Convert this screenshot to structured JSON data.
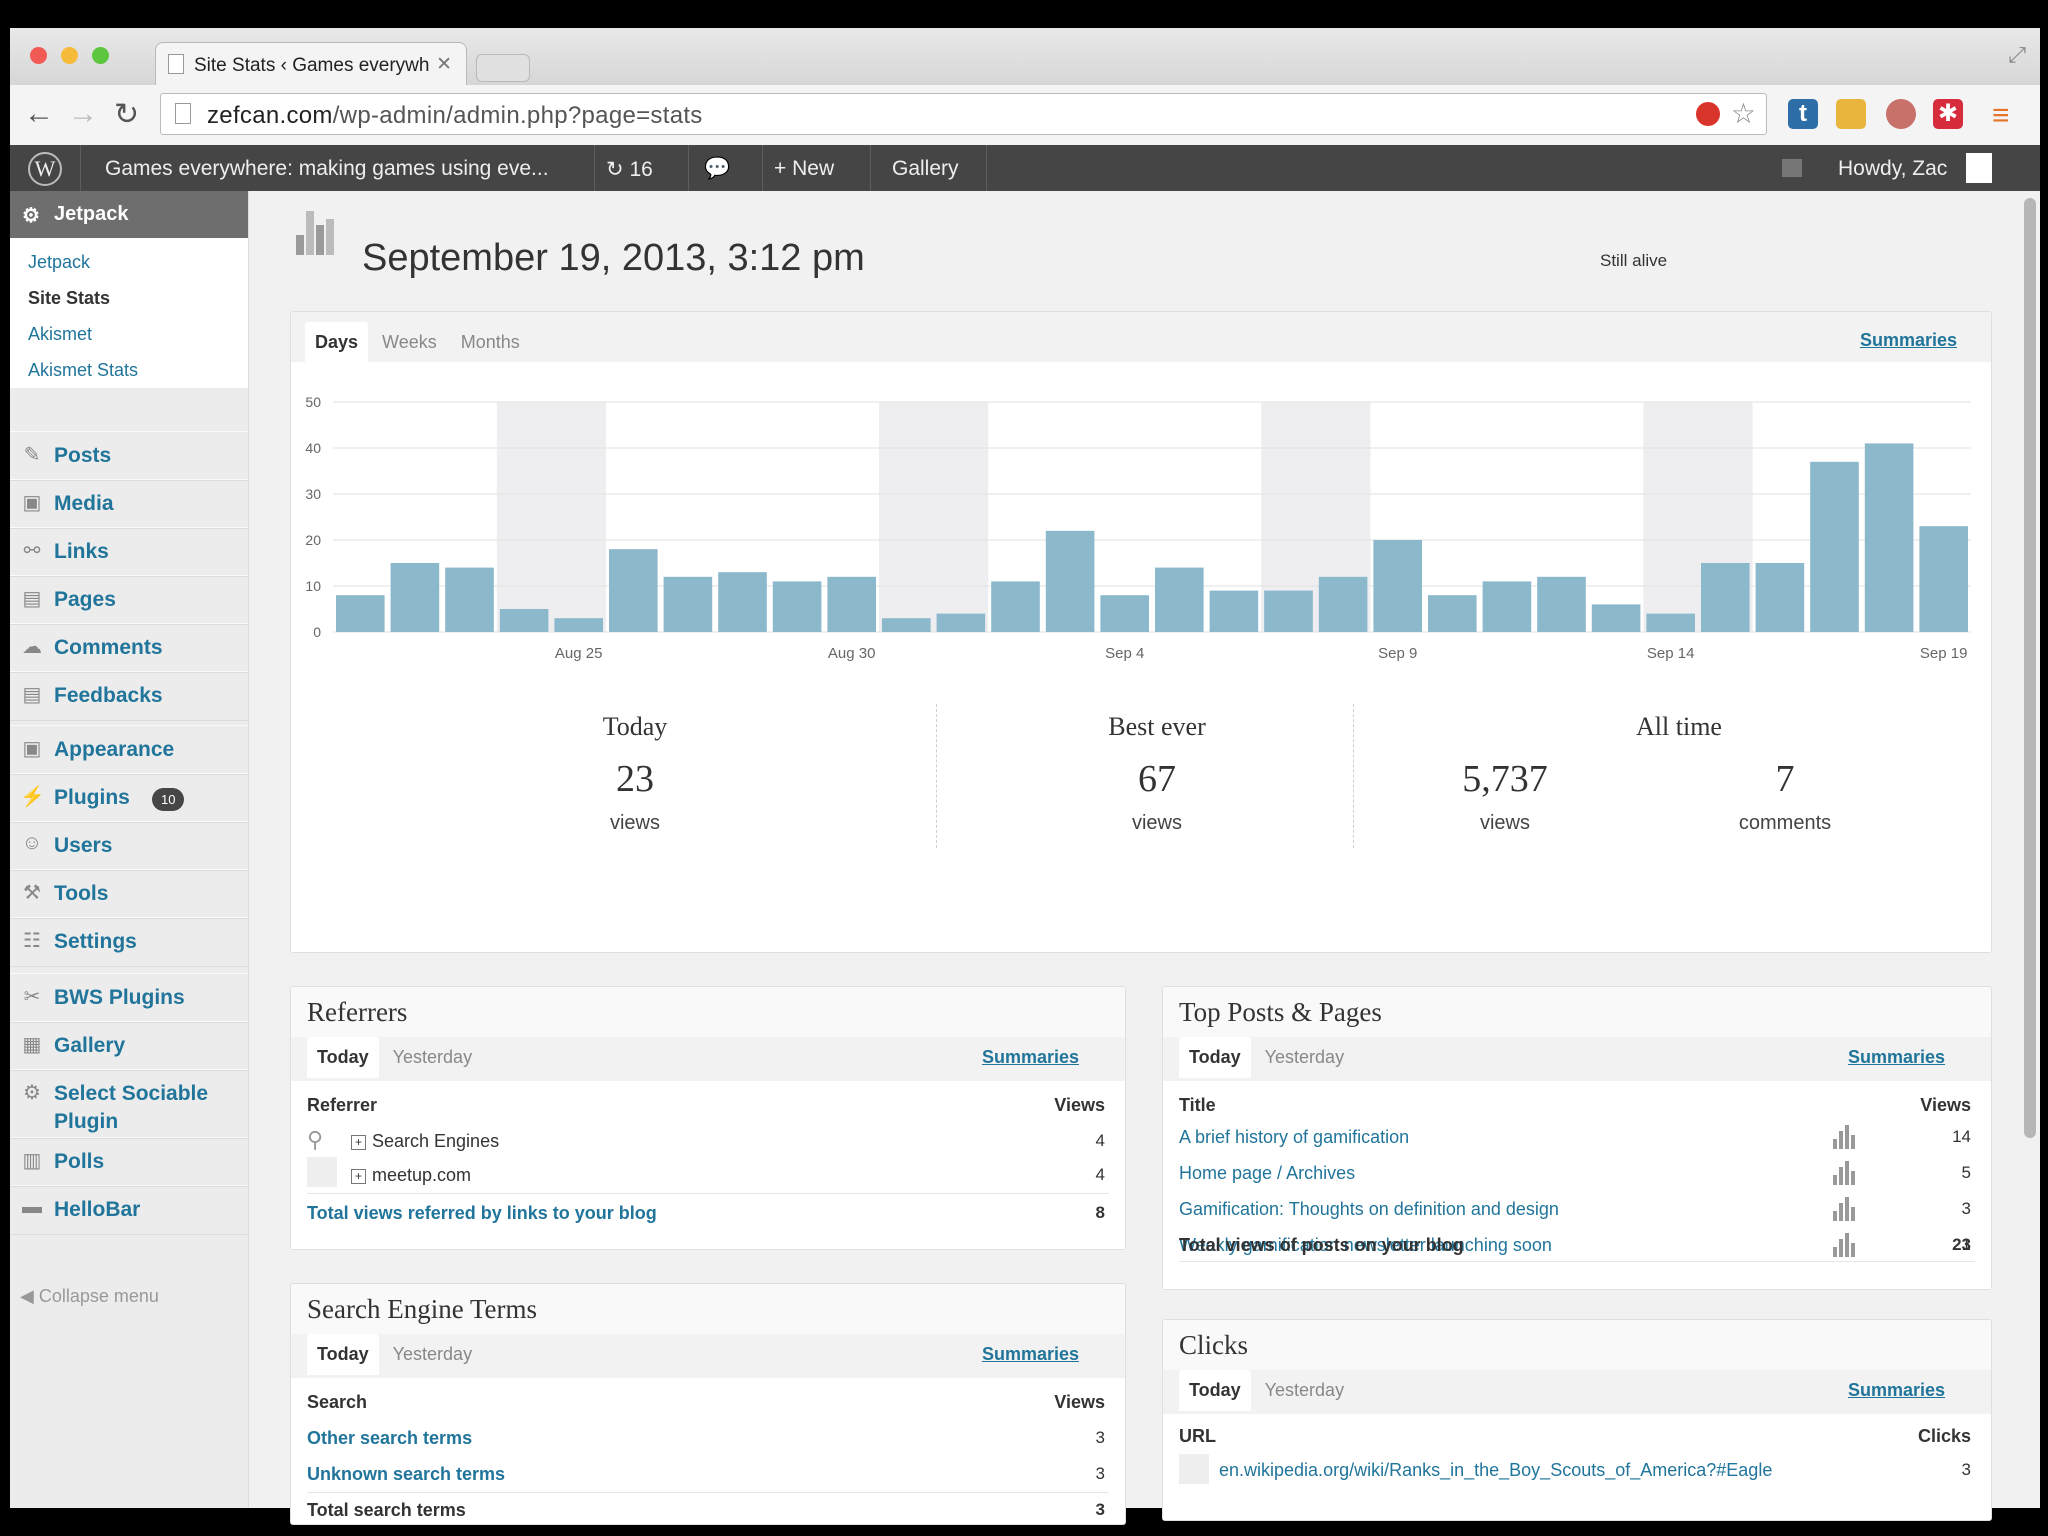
{
  "browser": {
    "tab_title": "Site Stats ‹ Games everywh",
    "url_domain": "zefcan.com",
    "url_path": "/wp-admin/admin.php?page=stats"
  },
  "adminbar": {
    "site_name": "Games everywhere: making games using eve...",
    "updates_count": "16",
    "new_label": "New",
    "gallery_label": "Gallery",
    "greeting": "Howdy, Zac"
  },
  "sidebar": {
    "current": "Jetpack",
    "submenu": [
      "Jetpack",
      "Site Stats",
      "Akismet",
      "Akismet Stats"
    ],
    "items": [
      {
        "label": "Posts",
        "icon": "pushpin-icon"
      },
      {
        "label": "Media",
        "icon": "media-icon"
      },
      {
        "label": "Links",
        "icon": "link-icon"
      },
      {
        "label": "Pages",
        "icon": "pages-icon"
      },
      {
        "label": "Comments",
        "icon": "comment-icon"
      },
      {
        "label": "Feedbacks",
        "icon": "feedback-icon"
      },
      {
        "label": "Appearance",
        "icon": "appearance-icon"
      },
      {
        "label": "Plugins",
        "icon": "plugin-icon",
        "badge": "10"
      },
      {
        "label": "Users",
        "icon": "users-icon"
      },
      {
        "label": "Tools",
        "icon": "tools-icon"
      },
      {
        "label": "Settings",
        "icon": "settings-icon"
      },
      {
        "label": "BWS Plugins",
        "icon": "bws-icon"
      },
      {
        "label": "Gallery",
        "icon": "gallery-icon"
      },
      {
        "label": "Select Sociable",
        "label2": "Plugin",
        "icon": "gear-icon"
      },
      {
        "label": "Polls",
        "icon": "polls-icon"
      },
      {
        "label": "HelloBar",
        "icon": "hellobar-icon"
      }
    ],
    "collapse": "Collapse menu"
  },
  "page": {
    "title": "September 19, 2013, 3:12 pm",
    "status": "Still alive"
  },
  "main_chart": {
    "tabs": [
      "Days",
      "Weeks",
      "Months"
    ],
    "summaries": "Summaries"
  },
  "chart_data": {
    "type": "bar",
    "categories": [
      "Aug 21",
      "Aug 22",
      "Aug 23",
      "Aug 24",
      "Aug 25",
      "Aug 26",
      "Aug 27",
      "Aug 28",
      "Aug 29",
      "Aug 30",
      "Aug 31",
      "Sep 1",
      "Sep 2",
      "Sep 3",
      "Sep 4",
      "Sep 5",
      "Sep 6",
      "Sep 7",
      "Sep 8",
      "Sep 9",
      "Sep 10",
      "Sep 11",
      "Sep 12",
      "Sep 13",
      "Sep 14",
      "Sep 15",
      "Sep 16",
      "Sep 17",
      "Sep 18",
      "Sep 19"
    ],
    "values": [
      8,
      15,
      14,
      5,
      3,
      18,
      12,
      13,
      11,
      12,
      3,
      4,
      11,
      22,
      8,
      14,
      9,
      9,
      12,
      20,
      8,
      11,
      12,
      6,
      4,
      15,
      15,
      37,
      41,
      23
    ],
    "xtick_labels": [
      "Aug 25",
      "Aug 30",
      "Sep 4",
      "Sep 9",
      "Sep 14",
      "Sep 19"
    ],
    "xtick_index": [
      4,
      9,
      14,
      19,
      24,
      29
    ],
    "yticks": [
      0,
      10,
      20,
      30,
      40,
      50
    ],
    "ylim": [
      0,
      50
    ],
    "weekend_bands": [
      [
        3,
        4
      ],
      [
        10,
        11
      ],
      [
        17,
        18
      ],
      [
        24,
        25
      ]
    ],
    "bar_color": "#8cb8cc",
    "band_color": "#eeeef0"
  },
  "summary": {
    "today": {
      "label": "Today",
      "value": "23",
      "unit": "views"
    },
    "best": {
      "label": "Best ever",
      "value": "67",
      "unit": "views"
    },
    "alltime": {
      "label": "All time",
      "views": "5,737",
      "views_unit": "views",
      "comments": "7",
      "comments_unit": "comments"
    }
  },
  "referrers": {
    "title": "Referrers",
    "tabs": [
      "Today",
      "Yesterday"
    ],
    "summaries": "Summaries",
    "col1": "Referrer",
    "col2": "Views",
    "rows": [
      {
        "name": "Search Engines",
        "views": "4"
      },
      {
        "name": "meetup.com",
        "views": "4"
      }
    ],
    "total_label": "Total views referred by links to your blog",
    "total": "8"
  },
  "search_terms": {
    "title": "Search Engine Terms",
    "tabs": [
      "Today",
      "Yesterday"
    ],
    "summaries": "Summaries",
    "col1": "Search",
    "col2": "Views",
    "rows": [
      {
        "name": "Other search terms",
        "views": "3"
      },
      {
        "name": "Unknown search terms",
        "views": "3"
      }
    ],
    "total_label": "Total search terms",
    "total": "3"
  },
  "top_posts": {
    "title": "Top Posts & Pages",
    "tabs": [
      "Today",
      "Yesterday"
    ],
    "summaries": "Summaries",
    "col1": "Title",
    "col2": "Views",
    "rows": [
      {
        "name": "A brief history of gamification",
        "views": "14"
      },
      {
        "name": "Home page / Archives",
        "views": "5"
      },
      {
        "name": "Gamification: Thoughts on definition and design",
        "views": "3"
      },
      {
        "name": "Weekly gamification newsletter launching soon",
        "views": "1"
      }
    ],
    "total_label": "Total views of posts on your blog",
    "total": "23"
  },
  "clicks": {
    "title": "Clicks",
    "tabs": [
      "Today",
      "Yesterday"
    ],
    "summaries": "Summaries",
    "col1": "URL",
    "col2": "Clicks",
    "rows": [
      {
        "name": "en.wikipedia.org/wiki/Ranks_in_the_Boy_Scouts_of_America?#Eagle",
        "clicks": "3"
      }
    ]
  }
}
